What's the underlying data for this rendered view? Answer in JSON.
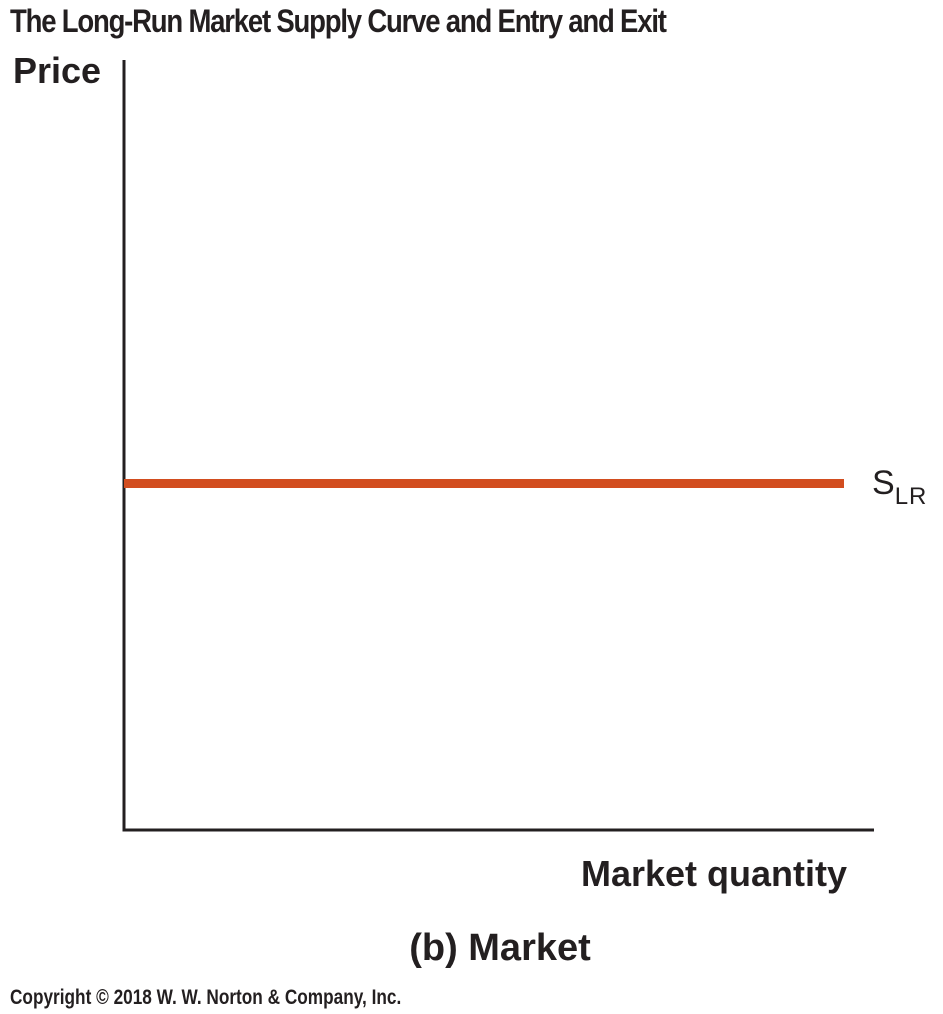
{
  "figure": {
    "title": "The Long-Run Market Supply Curve and Entry and Exit",
    "panel_label": "(b) Market",
    "copyright": "Copyright © 2018 W. W. Norton & Company, Inc."
  },
  "chart_data": {
    "type": "line",
    "title": "The Long-Run Market Supply Curve and Entry and Exit",
    "xlabel": "Market quantity",
    "ylabel": "Price",
    "grid": false,
    "series": [
      {
        "name": "S_LR",
        "label_main": "S",
        "label_sub": "LR",
        "color": "#d24d1f",
        "x": [
          0,
          0.96
        ],
        "y": [
          0.45,
          0.45
        ]
      }
    ],
    "xlim": [
      0,
      1
    ],
    "ylim": [
      0,
      1
    ]
  }
}
